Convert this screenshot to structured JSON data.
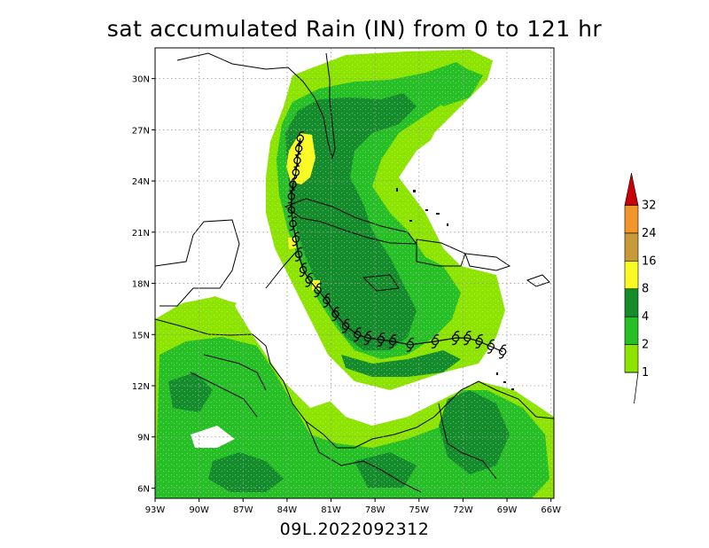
{
  "title": "sat accumulated Rain (IN) from 0 to 121 hr",
  "footer": "09L.2022092312",
  "storm_symbol": "hurricane-symbol",
  "map": {
    "lon_range": [
      -93,
      -65.8
    ],
    "lat_range": [
      5.4,
      31.8
    ],
    "lon_ticks": [
      {
        "lon": -93,
        "label": "93W"
      },
      {
        "lon": -90,
        "label": "90W"
      },
      {
        "lon": -87,
        "label": "87W"
      },
      {
        "lon": -84,
        "label": "84W"
      },
      {
        "lon": -81,
        "label": "81W"
      },
      {
        "lon": -78,
        "label": "78W"
      },
      {
        "lon": -75,
        "label": "75W"
      },
      {
        "lon": -72,
        "label": "72W"
      },
      {
        "lon": -69,
        "label": "69W"
      },
      {
        "lon": -66,
        "label": "66W"
      }
    ],
    "lat_ticks": [
      {
        "lat": 6,
        "label": "6N"
      },
      {
        "lat": 9,
        "label": "9N"
      },
      {
        "lat": 12,
        "label": "12N"
      },
      {
        "lat": 15,
        "label": "15N"
      },
      {
        "lat": 18,
        "label": "18N"
      },
      {
        "lat": 21,
        "label": "21N"
      },
      {
        "lat": 24,
        "label": "24N"
      },
      {
        "lat": 27,
        "label": "27N"
      },
      {
        "lat": 30,
        "label": "30N"
      }
    ],
    "track": [
      [
        -69.3,
        14.0
      ],
      [
        -70.1,
        14.3
      ],
      [
        -70.9,
        14.6
      ],
      [
        -71.7,
        14.8
      ],
      [
        -72.5,
        14.8
      ],
      [
        -73.9,
        14.6
      ],
      [
        -75.6,
        14.4
      ],
      [
        -76.8,
        14.6
      ],
      [
        -77.6,
        14.7
      ],
      [
        -78.5,
        14.8
      ],
      [
        -79.2,
        15.0
      ],
      [
        -80.0,
        15.5
      ],
      [
        -80.7,
        16.2
      ],
      [
        -81.3,
        17.0
      ],
      [
        -81.9,
        17.6
      ],
      [
        -82.5,
        18.2
      ],
      [
        -82.9,
        18.8
      ],
      [
        -83.2,
        19.7
      ],
      [
        -83.4,
        20.6
      ],
      [
        -83.6,
        21.5
      ],
      [
        -83.7,
        22.3
      ],
      [
        -83.7,
        23.1
      ],
      [
        -83.6,
        23.8
      ],
      [
        -83.4,
        24.5
      ],
      [
        -83.3,
        25.2
      ],
      [
        -83.2,
        25.9
      ],
      [
        -83.1,
        26.5
      ]
    ]
  },
  "colorbar": {
    "levels": [
      {
        "label": "1",
        "color": "#8ce400"
      },
      {
        "label": "2",
        "color": "#26bf26"
      },
      {
        "label": "4",
        "color": "#148c2c"
      },
      {
        "label": "8",
        "color": "#fafa23"
      },
      {
        "label": "16",
        "color": "#c89a3a"
      },
      {
        "label": "24",
        "color": "#f0962a"
      },
      {
        "label": "32",
        "color": "#c8000a"
      }
    ]
  },
  "legend": {
    "light_green": "#8ce400",
    "green": "#26bf26",
    "dark_green": "#148c2c",
    "yellow": "#fafa23"
  }
}
